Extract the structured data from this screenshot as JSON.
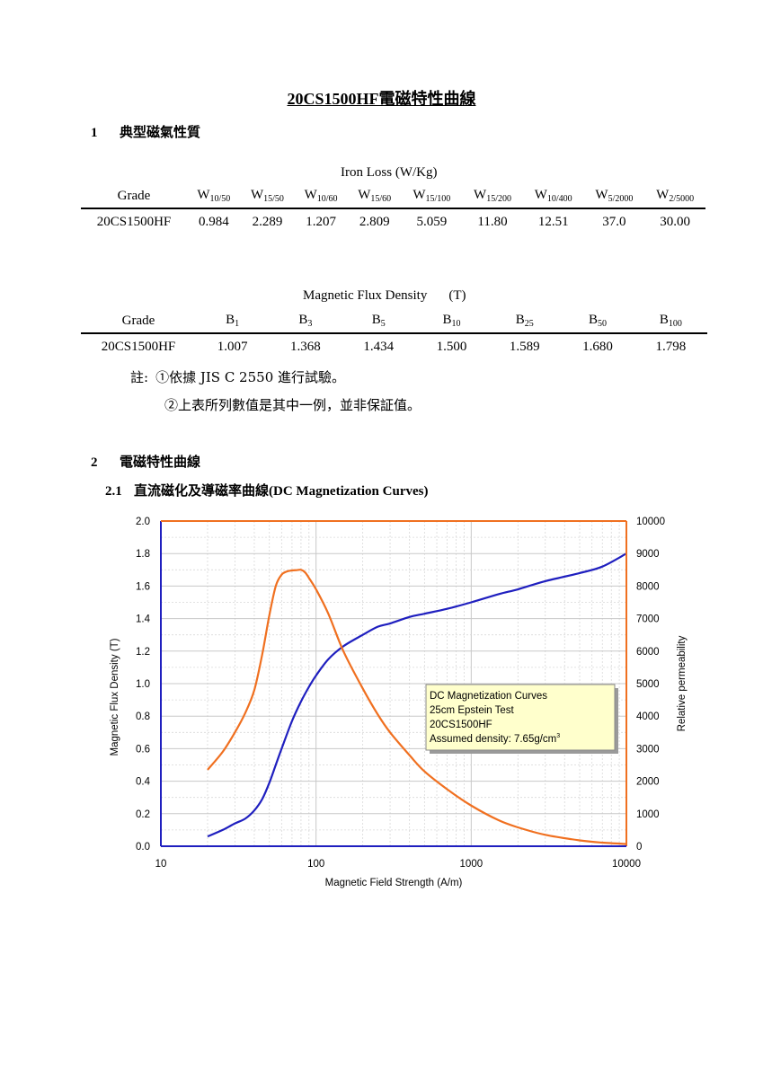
{
  "title": "20CS1500HF電磁特性曲線",
  "section1": {
    "num": "1",
    "title": "典型磁氣性質"
  },
  "iron_loss": {
    "caption": "Iron Loss (W/Kg)",
    "grade_label": "Grade",
    "columns": [
      {
        "base": "W",
        "sub": "10/50"
      },
      {
        "base": "W",
        "sub": "15/50"
      },
      {
        "base": "W",
        "sub": "10/60"
      },
      {
        "base": "W",
        "sub": "15/60"
      },
      {
        "base": "W",
        "sub": "15/100"
      },
      {
        "base": "W",
        "sub": "15/200"
      },
      {
        "base": "W",
        "sub": "10/400"
      },
      {
        "base": "W",
        "sub": "5/2000"
      },
      {
        "base": "W",
        "sub": "2/5000"
      }
    ],
    "row": {
      "grade": "20CS1500HF",
      "values": [
        "0.984",
        "2.289",
        "1.207",
        "2.809",
        "5.059",
        "11.80",
        "12.51",
        "37.0",
        "30.00"
      ]
    }
  },
  "flux_density": {
    "caption": "Magnetic Flux Density",
    "unit": "(T)",
    "grade_label": "Grade",
    "columns": [
      {
        "base": "B",
        "sub": "1"
      },
      {
        "base": "B",
        "sub": "3"
      },
      {
        "base": "B",
        "sub": "5"
      },
      {
        "base": "B",
        "sub": "10"
      },
      {
        "base": "B",
        "sub": "25"
      },
      {
        "base": "B",
        "sub": "50"
      },
      {
        "base": "B",
        "sub": "100"
      }
    ],
    "row": {
      "grade": "20CS1500HF",
      "values": [
        "1.007",
        "1.368",
        "1.434",
        "1.500",
        "1.589",
        "1.680",
        "1.798"
      ]
    }
  },
  "notes": {
    "prefix": "註:",
    "items": [
      "①依據 JIS C 2550 進行試驗。",
      "②上表所列數值是其中一例，並非保証值。"
    ]
  },
  "section2": {
    "num": "2",
    "title": "電磁特性曲線"
  },
  "subsection21": {
    "num": "2.1",
    "title": "直流磁化及導磁率曲線(DC Magnetization Curves)"
  },
  "chart_data": {
    "type": "line",
    "title": "",
    "xlabel": "Magnetic Field Strength (A/m)",
    "ylabel": "Magnetic Flux Density (T)",
    "y2label": "Relative permeability",
    "xscale": "log",
    "xlim": [
      10,
      10000
    ],
    "ylim": [
      0,
      2.0
    ],
    "y2lim": [
      0,
      10000
    ],
    "xticks": [
      "10",
      "100",
      "1000",
      "10000"
    ],
    "yticks": [
      "0.0",
      "0.2",
      "0.4",
      "0.6",
      "0.8",
      "1.0",
      "1.2",
      "1.4",
      "1.6",
      "1.8",
      "2.0"
    ],
    "y2ticks": [
      "0",
      "1000",
      "2000",
      "3000",
      "4000",
      "5000",
      "6000",
      "7000",
      "8000",
      "9000",
      "10000"
    ],
    "grid": true,
    "annotation": {
      "lines": [
        "DC Magnetization Curves",
        "25cm Epstein Test",
        "20CS1500HF",
        "Assumed density: 7.65g/cm"
      ],
      "sup": "3",
      "placement": "center-right"
    },
    "series": [
      {
        "axis": "left",
        "color": "#1f1fbf",
        "x": [
          20,
          25,
          30,
          35,
          40,
          45,
          50,
          55,
          60,
          70,
          80,
          90,
          100,
          120,
          150,
          200,
          250,
          300,
          400,
          500,
          700,
          1000,
          1500,
          2000,
          3000,
          5000,
          7000,
          10000
        ],
        "y": [
          0.06,
          0.1,
          0.14,
          0.17,
          0.22,
          0.29,
          0.39,
          0.5,
          0.6,
          0.77,
          0.89,
          0.98,
          1.05,
          1.15,
          1.23,
          1.3,
          1.35,
          1.37,
          1.41,
          1.43,
          1.46,
          1.5,
          1.55,
          1.58,
          1.63,
          1.68,
          1.72,
          1.8
        ]
      },
      {
        "axis": "right",
        "color": "#f07020",
        "x": [
          20,
          25,
          30,
          35,
          40,
          45,
          50,
          55,
          60,
          65,
          70,
          75,
          80,
          85,
          90,
          100,
          120,
          150,
          200,
          250,
          300,
          400,
          500,
          700,
          1000,
          1500,
          2000,
          3000,
          5000,
          7000,
          10000
        ],
        "y": [
          2350,
          2900,
          3500,
          4100,
          4800,
          5900,
          7100,
          8000,
          8350,
          8450,
          8480,
          8490,
          8500,
          8420,
          8250,
          7900,
          7150,
          6000,
          4850,
          4050,
          3500,
          2800,
          2300,
          1750,
          1250,
          800,
          580,
          350,
          180,
          110,
          70
        ]
      }
    ]
  },
  "colors": {
    "left_axis": "#1f1fbf",
    "right_axis": "#f07020",
    "annotation_bg": "#ffffcc"
  }
}
